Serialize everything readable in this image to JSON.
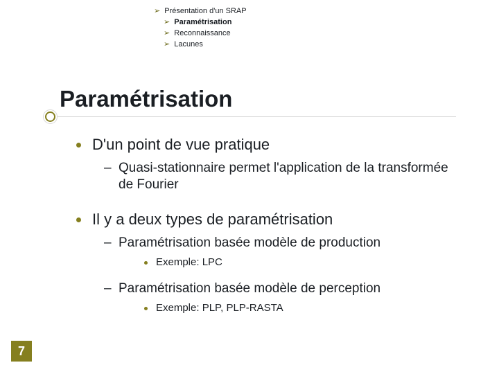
{
  "colors": {
    "text_dark": "#1a1e23",
    "accent_olive": "#857f1f",
    "breadcrumb_text": "#1a1e23",
    "breadcrumb_olive": "#6c6a1a",
    "page_num_bg": "#857f1f",
    "page_num_text": "#ffffff"
  },
  "breadcrumb": {
    "top": {
      "arrow": "➢",
      "label": "Présentation d'un SRAP"
    },
    "subs": [
      {
        "arrow": "➢",
        "label": "Paramétrisation",
        "active": true
      },
      {
        "arrow": "➢",
        "label": "Reconnaissance",
        "active": false
      },
      {
        "arrow": "➢",
        "label": "Lacunes",
        "active": false
      }
    ]
  },
  "title": "Paramétrisation",
  "bullets": {
    "b1": {
      "text": "D'un point de vue pratique",
      "sub1": "Quasi-stationnaire permet l'application de la transformée de Fourier"
    },
    "b2": {
      "text": "Il y a deux types de paramétrisation",
      "sub1": {
        "text": "Paramétrisation basée modèle de production",
        "ex": "Exemple: LPC"
      },
      "sub2": {
        "text": "Paramétrisation basée modèle de perception",
        "ex": "Exemple: PLP, PLP-RASTA"
      }
    }
  },
  "page_number": "7"
}
